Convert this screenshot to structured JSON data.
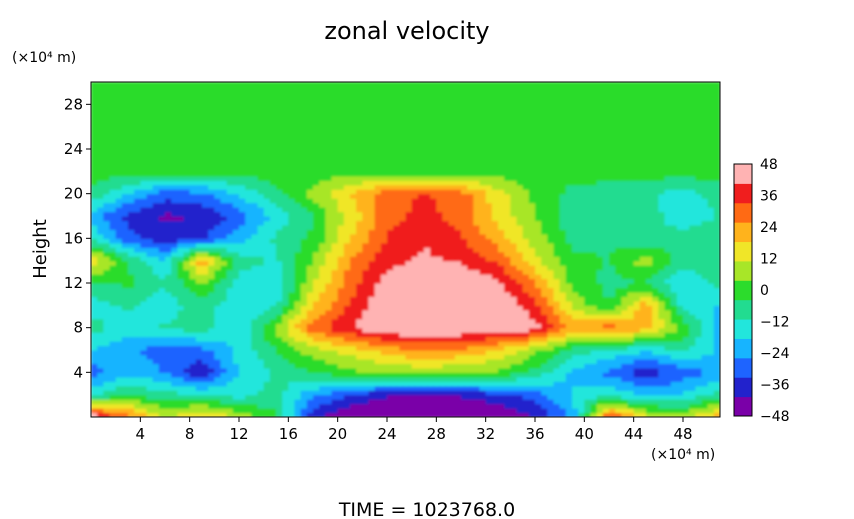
{
  "chart_data": {
    "type": "heatmap",
    "title": "zonal velocity",
    "xlabel": "",
    "ylabel": "Height",
    "x_units": "(×10⁴ m)",
    "y_units": "(×10⁴ m)",
    "time_label": "TIME = 1023768.0",
    "xlim": [
      0,
      51
    ],
    "ylim": [
      0,
      30
    ],
    "x_ticks": [
      4,
      8,
      12,
      16,
      20,
      24,
      28,
      32,
      36,
      40,
      44,
      48
    ],
    "y_ticks": [
      4,
      8,
      12,
      16,
      20,
      24,
      28
    ],
    "colorbar": {
      "range": [
        -48,
        48
      ],
      "ticks": [
        48,
        36,
        24,
        12,
        0,
        -12,
        -24,
        -36,
        -48
      ],
      "colors": [
        "#7a00a8",
        "#2222cc",
        "#1e64ff",
        "#17b4ff",
        "#22e6dc",
        "#22dc90",
        "#2cdc2c",
        "#a8e628",
        "#f0e628",
        "#ffb31c",
        "#ff6a14",
        "#f01e1e",
        "#ffb3b3"
      ]
    },
    "field": {
      "description_grid": "values in m/s sampled on x (0..51, step 3) by y (0..30, step 2), rows from top",
      "x": [
        0,
        3,
        6,
        9,
        12,
        15,
        18,
        21,
        24,
        27,
        30,
        33,
        36,
        39,
        42,
        45,
        48,
        51
      ],
      "y": [
        30,
        28,
        26,
        24,
        22,
        20,
        18,
        16,
        14,
        12,
        10,
        8,
        6,
        4,
        2,
        0
      ],
      "z": [
        [
          0,
          0,
          0,
          0,
          0,
          0,
          0,
          0,
          0,
          0,
          0,
          0,
          0,
          0,
          0,
          0,
          0,
          0
        ],
        [
          0,
          0,
          0,
          0,
          0,
          0,
          0,
          0,
          0,
          0,
          0,
          0,
          0,
          0,
          0,
          0,
          0,
          0
        ],
        [
          0,
          0,
          0,
          0,
          0,
          0,
          0,
          0,
          0,
          0,
          0,
          0,
          0,
          0,
          0,
          0,
          0,
          0
        ],
        [
          0,
          0,
          0,
          0,
          0,
          0,
          0,
          0,
          0,
          0,
          0,
          0,
          0,
          0,
          0,
          0,
          0,
          0
        ],
        [
          0,
          0,
          0,
          0,
          0,
          0,
          0,
          0,
          0,
          0,
          0,
          0,
          0,
          0,
          0,
          0,
          0,
          0
        ],
        [
          -6,
          -18,
          -30,
          -28,
          -18,
          -6,
          6,
          18,
          30,
          34,
          30,
          14,
          2,
          -6,
          -8,
          -10,
          -14,
          -8
        ],
        [
          -22,
          -36,
          -42,
          -40,
          -30,
          -16,
          -4,
          14,
          30,
          36,
          30,
          16,
          4,
          -8,
          -10,
          -6,
          -18,
          -10
        ],
        [
          -12,
          -30,
          -38,
          -34,
          -22,
          -10,
          -2,
          18,
          34,
          40,
          34,
          22,
          8,
          -6,
          -4,
          -10,
          -6,
          -4
        ],
        [
          18,
          -4,
          -18,
          24,
          -8,
          -12,
          4,
          26,
          38,
          42,
          40,
          32,
          14,
          -2,
          -4,
          8,
          -8,
          -6
        ],
        [
          -6,
          -2,
          -10,
          4,
          -14,
          -18,
          10,
          30,
          44,
          48,
          48,
          42,
          26,
          2,
          -6,
          -4,
          -18,
          -8
        ],
        [
          -14,
          -10,
          -16,
          -6,
          -18,
          -12,
          18,
          34,
          48,
          48,
          48,
          48,
          36,
          10,
          -4,
          24,
          -14,
          -20
        ],
        [
          -8,
          -16,
          -10,
          -8,
          -18,
          6,
          30,
          40,
          48,
          48,
          48,
          46,
          44,
          24,
          30,
          20,
          2,
          -22
        ],
        [
          -18,
          -24,
          -30,
          -28,
          -16,
          -4,
          8,
          14,
          22,
          26,
          24,
          18,
          6,
          -8,
          -12,
          -18,
          -10,
          -20
        ],
        [
          -30,
          -20,
          -26,
          -40,
          -18,
          -10,
          -4,
          2,
          4,
          6,
          4,
          2,
          -6,
          -20,
          -28,
          -38,
          -30,
          -24
        ],
        [
          -12,
          -4,
          -8,
          -10,
          -14,
          -8,
          -24,
          -34,
          -40,
          -42,
          -40,
          -36,
          -30,
          -18,
          -12,
          -20,
          -18,
          -8
        ],
        [
          48,
          30,
          10,
          20,
          10,
          -2,
          -38,
          -48,
          -48,
          -48,
          -48,
          -48,
          -40,
          -24,
          36,
          14,
          8,
          24
        ]
      ]
    }
  }
}
